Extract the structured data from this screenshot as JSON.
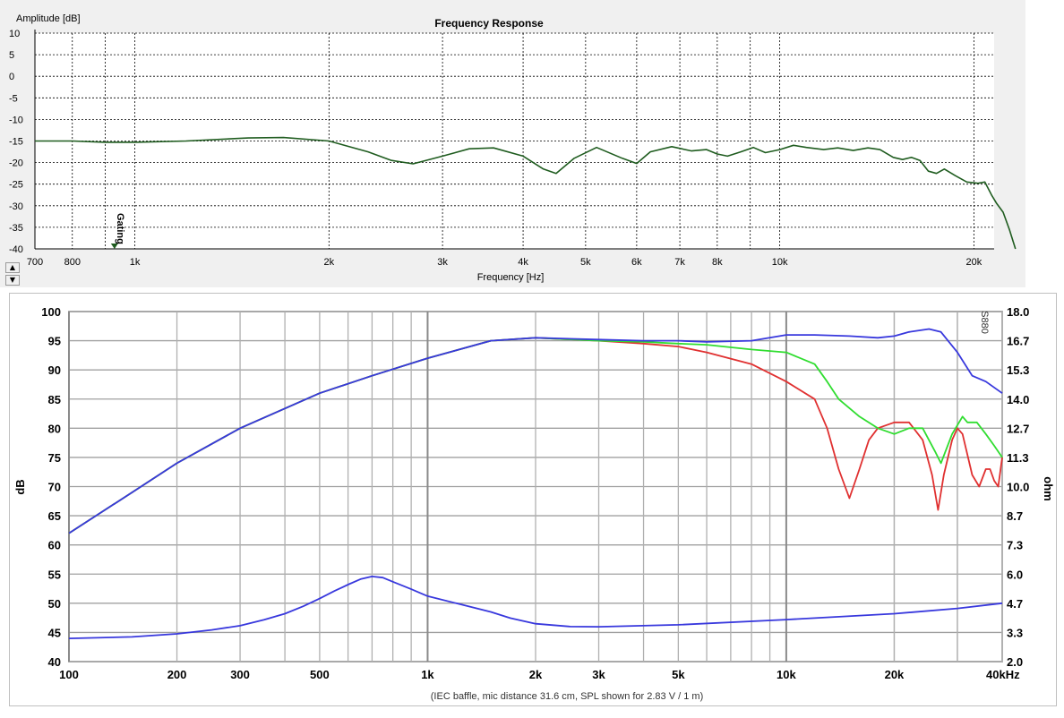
{
  "chart_data": [
    {
      "type": "line",
      "title": "Frequency Response",
      "ylabel": "Amplitude [dB]",
      "xlabel": "Frequency [Hz]",
      "x_scale": "log",
      "xlim": [
        700,
        21500
      ],
      "ylim": [
        -40,
        10
      ],
      "y_ticks": [
        10,
        5,
        0,
        -5,
        -10,
        -15,
        -20,
        -25,
        -30,
        -35,
        -40
      ],
      "x_ticks": [
        {
          "v": 700,
          "label": "700"
        },
        {
          "v": 800,
          "label": "800"
        },
        {
          "v": 1000,
          "label": "1k"
        },
        {
          "v": 2000,
          "label": "2k"
        },
        {
          "v": 3000,
          "label": "3k"
        },
        {
          "v": 4000,
          "label": "4k"
        },
        {
          "v": 5000,
          "label": "5k"
        },
        {
          "v": 6000,
          "label": "6k"
        },
        {
          "v": 7000,
          "label": "7k"
        },
        {
          "v": 8000,
          "label": "8k"
        },
        {
          "v": 10000,
          "label": "10k"
        },
        {
          "v": 20000,
          "label": "20k"
        }
      ],
      "grid": true,
      "marker": {
        "label": "Gating",
        "x": 930
      },
      "series": [
        {
          "color": "#1f5c1f",
          "points": [
            [
              700,
              -15
            ],
            [
              800,
              -15
            ],
            [
              900,
              -15.3
            ],
            [
              1000,
              -15.3
            ],
            [
              1200,
              -15
            ],
            [
              1500,
              -14.3
            ],
            [
              1700,
              -14.2
            ],
            [
              2000,
              -15
            ],
            [
              2300,
              -17.5
            ],
            [
              2500,
              -19.5
            ],
            [
              2700,
              -20.3
            ],
            [
              3000,
              -18.5
            ],
            [
              3300,
              -16.8
            ],
            [
              3600,
              -16.6
            ],
            [
              4000,
              -18.5
            ],
            [
              4300,
              -21.5
            ],
            [
              4500,
              -22.5
            ],
            [
              4800,
              -19
            ],
            [
              5200,
              -16.5
            ],
            [
              5700,
              -19
            ],
            [
              6000,
              -20.2
            ],
            [
              6300,
              -17.5
            ],
            [
              6800,
              -16.3
            ],
            [
              7300,
              -17.3
            ],
            [
              7700,
              -17
            ],
            [
              8000,
              -18
            ],
            [
              8300,
              -18.5
            ],
            [
              8700,
              -17.5
            ],
            [
              9100,
              -16.5
            ],
            [
              9500,
              -17.7
            ],
            [
              10000,
              -17
            ],
            [
              10500,
              -16
            ],
            [
              11000,
              -16.5
            ],
            [
              11700,
              -17
            ],
            [
              12300,
              -16.6
            ],
            [
              13000,
              -17.2
            ],
            [
              13700,
              -16.6
            ],
            [
              14300,
              -17
            ],
            [
              15000,
              -18.8
            ],
            [
              15500,
              -19.3
            ],
            [
              16000,
              -18.8
            ],
            [
              16500,
              -19.5
            ],
            [
              17000,
              -22
            ],
            [
              17500,
              -22.5
            ],
            [
              18000,
              -21.5
            ],
            [
              18700,
              -23
            ],
            [
              19500,
              -24.5
            ],
            [
              20300,
              -24.8
            ],
            [
              20800,
              -24.5
            ],
            [
              21300,
              -27.5
            ],
            [
              21700,
              -29.5
            ],
            [
              22200,
              -31.5
            ],
            [
              22700,
              -35.5
            ],
            [
              23200,
              -40
            ]
          ]
        }
      ]
    },
    {
      "type": "line",
      "xlabel": "(IEC baffle, mic distance 31.6 cm, SPL shown for 2.83 V / 1 m)",
      "ylabel": "dB",
      "ylabel_right": "ohm",
      "x_scale": "log",
      "xlim": [
        100,
        40000
      ],
      "ylim": [
        40,
        100
      ],
      "ylim_right": [
        2.0,
        18.0
      ],
      "y_ticks": [
        "100",
        "95",
        "90",
        "85",
        "80",
        "75",
        "70",
        "65",
        "60",
        "55",
        "50",
        "45",
        "40"
      ],
      "y_ticks_right": [
        "18.0",
        "16.7",
        "15.3",
        "14.0",
        "12.7",
        "11.3",
        "10.0",
        "8.7",
        "7.3",
        "6.0",
        "4.7",
        "3.3",
        "2.0"
      ],
      "x_ticks": [
        {
          "v": 100,
          "label": "100"
        },
        {
          "v": 200,
          "label": "200"
        },
        {
          "v": 300,
          "label": "300"
        },
        {
          "v": 500,
          "label": "500"
        },
        {
          "v": 1000,
          "label": "1k"
        },
        {
          "v": 2000,
          "label": "2k"
        },
        {
          "v": 3000,
          "label": "3k"
        },
        {
          "v": 5000,
          "label": "5k"
        },
        {
          "v": 10000,
          "label": "10k"
        },
        {
          "v": 20000,
          "label": "20k"
        },
        {
          "v": 40000,
          "label": "40kHz"
        }
      ],
      "corner_mark": "S880",
      "grid": true,
      "series": [
        {
          "color": "#e03030",
          "points": [
            [
              100,
              62
            ],
            [
              150,
              69
            ],
            [
              200,
              74
            ],
            [
              300,
              80
            ],
            [
              500,
              86
            ],
            [
              700,
              89
            ],
            [
              1000,
              92
            ],
            [
              1500,
              95
            ],
            [
              2000,
              95.5
            ],
            [
              3000,
              95
            ],
            [
              4000,
              94.5
            ],
            [
              5000,
              94
            ],
            [
              6000,
              93
            ],
            [
              8000,
              91
            ],
            [
              10000,
              88
            ],
            [
              12000,
              85
            ],
            [
              13000,
              80
            ],
            [
              14000,
              73
            ],
            [
              15000,
              68
            ],
            [
              16000,
              73
            ],
            [
              17000,
              78
            ],
            [
              18000,
              80
            ],
            [
              20000,
              81
            ],
            [
              22000,
              81
            ],
            [
              24000,
              78
            ],
            [
              25500,
              72
            ],
            [
              26500,
              66
            ],
            [
              27500,
              72
            ],
            [
              29000,
              78
            ],
            [
              30000,
              80
            ],
            [
              31000,
              79
            ],
            [
              33000,
              72
            ],
            [
              34500,
              70
            ],
            [
              36000,
              73
            ],
            [
              37000,
              73
            ],
            [
              38000,
              71
            ],
            [
              39000,
              70
            ],
            [
              40000,
              75
            ]
          ]
        },
        {
          "color": "#30dd30",
          "points": [
            [
              100,
              62
            ],
            [
              150,
              69
            ],
            [
              200,
              74
            ],
            [
              300,
              80
            ],
            [
              500,
              86
            ],
            [
              700,
              89
            ],
            [
              1000,
              92
            ],
            [
              1500,
              95
            ],
            [
              2000,
              95.5
            ],
            [
              3000,
              95
            ],
            [
              4000,
              94.8
            ],
            [
              5000,
              94.5
            ],
            [
              6000,
              94.3
            ],
            [
              8000,
              93.5
            ],
            [
              10000,
              93
            ],
            [
              12000,
              91
            ],
            [
              13000,
              88
            ],
            [
              14000,
              85
            ],
            [
              16000,
              82
            ],
            [
              18000,
              80
            ],
            [
              20000,
              79
            ],
            [
              22000,
              80
            ],
            [
              24000,
              80
            ],
            [
              26000,
              76
            ],
            [
              27000,
              74
            ],
            [
              29000,
              79
            ],
            [
              31000,
              82
            ],
            [
              32000,
              81
            ],
            [
              34000,
              81
            ],
            [
              36000,
              79
            ],
            [
              38000,
              77
            ],
            [
              40000,
              75
            ]
          ]
        },
        {
          "color": "#3838dd",
          "points": [
            [
              100,
              62
            ],
            [
              150,
              69
            ],
            [
              200,
              74
            ],
            [
              300,
              80
            ],
            [
              500,
              86
            ],
            [
              700,
              89
            ],
            [
              1000,
              92
            ],
            [
              1500,
              95
            ],
            [
              2000,
              95.5
            ],
            [
              3000,
              95.2
            ],
            [
              4000,
              95
            ],
            [
              5000,
              95
            ],
            [
              6000,
              94.8
            ],
            [
              8000,
              95
            ],
            [
              10000,
              96
            ],
            [
              12000,
              96
            ],
            [
              15000,
              95.8
            ],
            [
              18000,
              95.5
            ],
            [
              20000,
              95.8
            ],
            [
              22000,
              96.5
            ],
            [
              25000,
              97
            ],
            [
              27000,
              96.5
            ],
            [
              30000,
              93
            ],
            [
              33000,
              89
            ],
            [
              36000,
              88
            ],
            [
              40000,
              86
            ]
          ]
        },
        {
          "color": "#3838dd",
          "axis": "right",
          "points": [
            [
              100,
              3.06
            ],
            [
              150,
              3.13
            ],
            [
              200,
              3.27
            ],
            [
              250,
              3.45
            ],
            [
              300,
              3.64
            ],
            [
              350,
              3.91
            ],
            [
              400,
              4.19
            ],
            [
              450,
              4.53
            ],
            [
              500,
              4.88
            ],
            [
              550,
              5.23
            ],
            [
              600,
              5.52
            ],
            [
              650,
              5.77
            ],
            [
              700,
              5.89
            ],
            [
              750,
              5.84
            ],
            [
              800,
              5.65
            ],
            [
              900,
              5.31
            ],
            [
              1000,
              4.99
            ],
            [
              1200,
              4.67
            ],
            [
              1500,
              4.27
            ],
            [
              1700,
              3.99
            ],
            [
              2000,
              3.73
            ],
            [
              2500,
              3.6
            ],
            [
              3000,
              3.59
            ],
            [
              5000,
              3.68
            ],
            [
              10000,
              3.92
            ],
            [
              20000,
              4.19
            ],
            [
              30000,
              4.43
            ],
            [
              40000,
              4.67
            ]
          ]
        }
      ]
    }
  ]
}
